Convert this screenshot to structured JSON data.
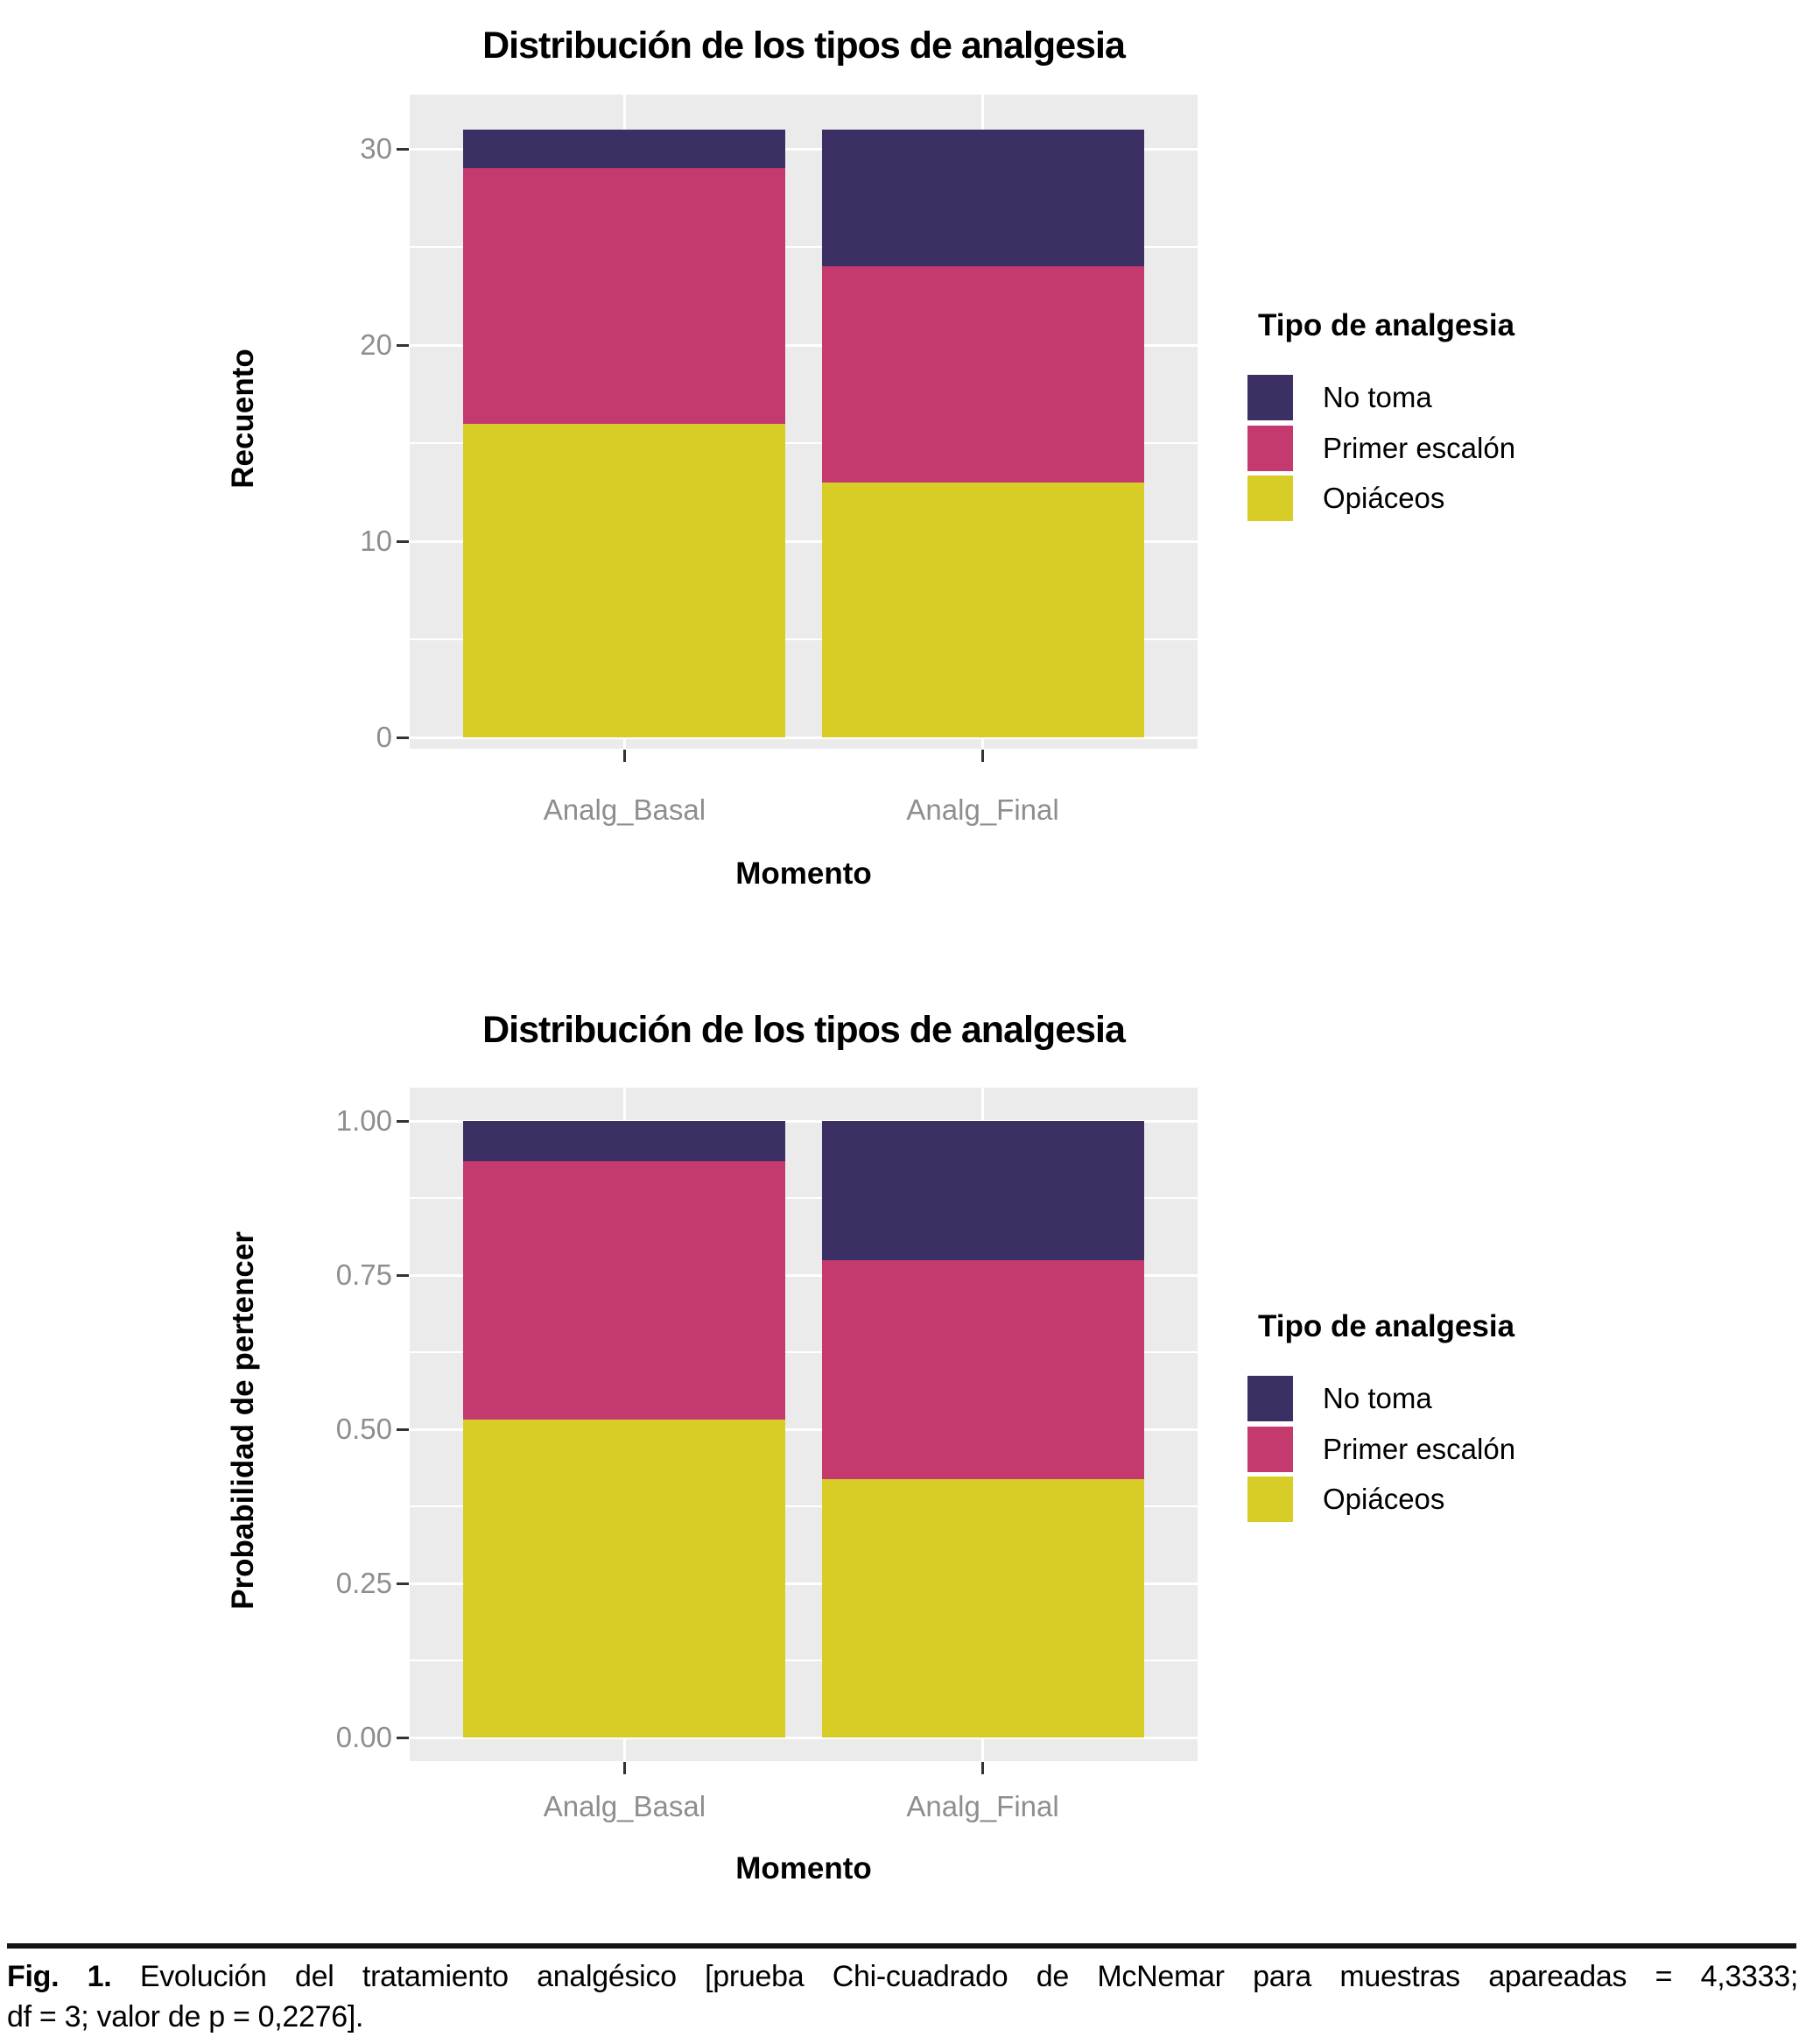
{
  "palette": {
    "no_toma": "#3c2f63",
    "primer_escalon": "#c43a6f",
    "opiaceos": "#d7cd26",
    "panel_background": "#ebebeb",
    "gridline": "#ffffff",
    "axis_text": "#8e8e8e",
    "tick_mark": "#333333",
    "text": "#000000"
  },
  "legend": {
    "title": "Tipo de analgesia",
    "items": [
      {
        "label": "No toma",
        "color_key": "no_toma"
      },
      {
        "label": "Primer escalón",
        "color_key": "primer_escalon"
      },
      {
        "label": "Opiáceos",
        "color_key": "opiaceos"
      }
    ]
  },
  "chart_data": [
    {
      "type": "bar",
      "stacked": true,
      "title": "Distribución de los tipos de analgesia",
      "xlabel": "Momento",
      "ylabel": "Recuento",
      "categories": [
        "Analg_Basal",
        "Analg_Final"
      ],
      "series": [
        {
          "name": "No toma",
          "color_key": "no_toma",
          "values": [
            2,
            7
          ]
        },
        {
          "name": "Primer escalón",
          "color_key": "primer_escalon",
          "values": [
            13,
            11
          ]
        },
        {
          "name": "Opiáceos",
          "color_key": "opiaceos",
          "values": [
            16,
            13
          ]
        }
      ],
      "bar_totals": [
        31,
        31
      ],
      "yticks": [
        0,
        10,
        20,
        30
      ],
      "ytick_labels": [
        "0",
        "10",
        "20",
        "30"
      ],
      "ylim": [
        0,
        31
      ],
      "grid": true,
      "legend_title": "Tipo de analgesia",
      "legend_position": "right"
    },
    {
      "type": "bar",
      "stacked": true,
      "normalized": true,
      "title": "Distribución de los tipos de analgesia",
      "xlabel": "Momento",
      "ylabel": "Probabilidad de pertencer",
      "categories": [
        "Analg_Basal",
        "Analg_Final"
      ],
      "series": [
        {
          "name": "No toma",
          "color_key": "no_toma",
          "values": [
            0.065,
            0.226
          ]
        },
        {
          "name": "Primer escalón",
          "color_key": "primer_escalon",
          "values": [
            0.419,
            0.355
          ]
        },
        {
          "name": "Opiáceos",
          "color_key": "opiaceos",
          "values": [
            0.516,
            0.419
          ]
        }
      ],
      "yticks": [
        0,
        0.25,
        0.5,
        0.75,
        1
      ],
      "ytick_labels": [
        "0.00",
        "0.25",
        "0.50",
        "0.75",
        "1.00"
      ],
      "ylim": [
        0,
        1
      ],
      "grid": true,
      "legend_title": "Tipo de analgesia",
      "legend_position": "right"
    }
  ],
  "caption": {
    "label": "Fig. 1.",
    "line1": "Evolución del tratamiento analgésico [prueba Chi-cuadrado de McNemar para muestras apareadas = 4,3333;",
    "line2": "df = 3; valor de p = 0,2276]."
  }
}
